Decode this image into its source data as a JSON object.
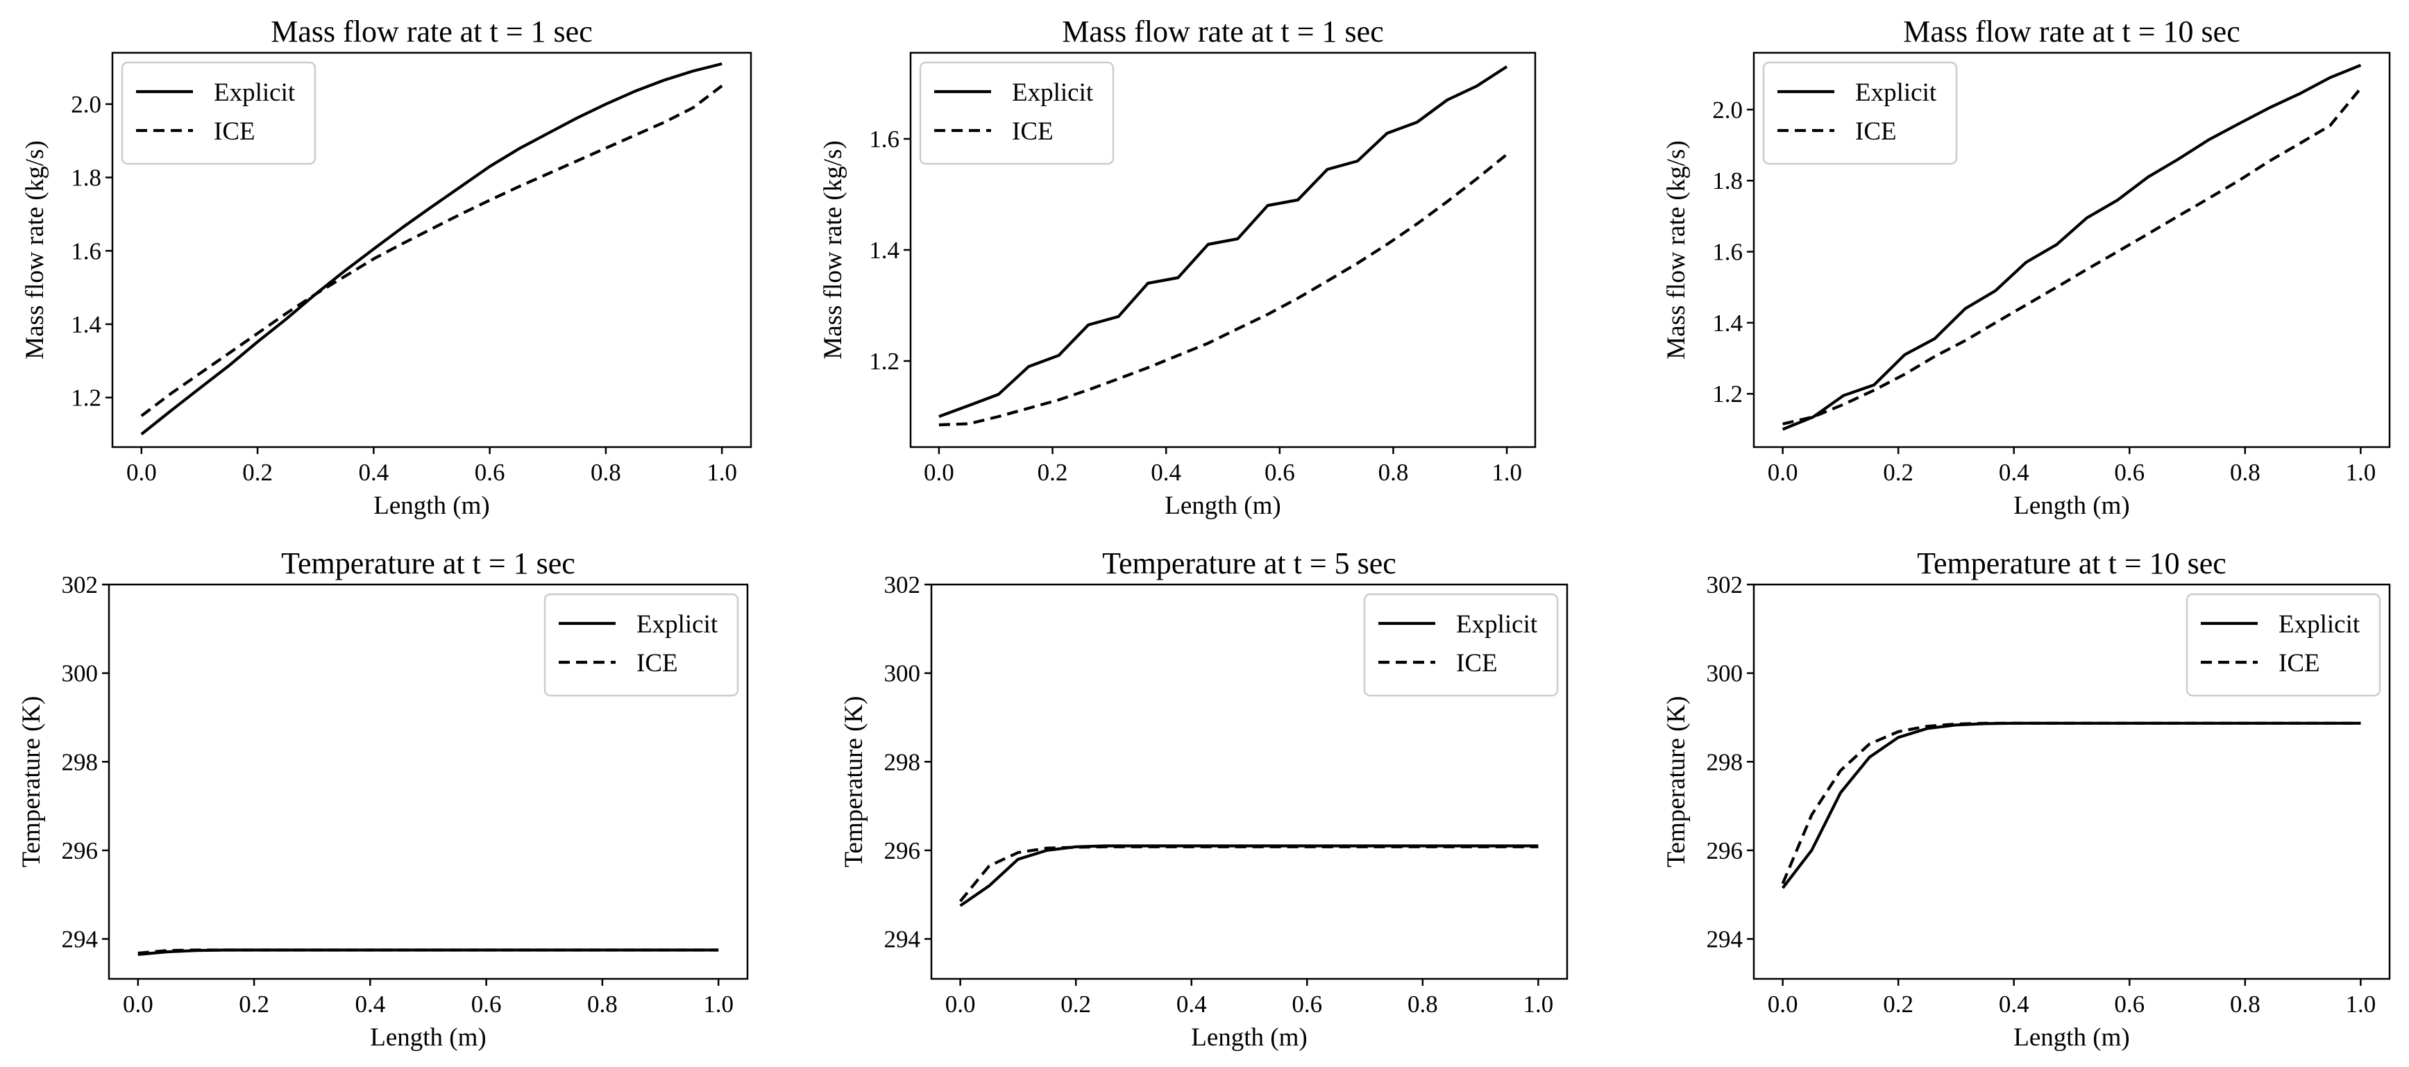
{
  "chart_data": [
    {
      "type": "line",
      "title": "Mass flow rate at t = 1 sec",
      "xlabel": "Length (m)",
      "ylabel": "Mass flow rate (kg/s)",
      "xlim": [
        -0.05,
        1.05
      ],
      "ylim": [
        1.065,
        2.14
      ],
      "xticks": [
        0.0,
        0.2,
        0.4,
        0.6,
        0.8,
        1.0
      ],
      "xtick_labels": [
        "0.0",
        "0.2",
        "0.4",
        "0.6",
        "0.8",
        "1.0"
      ],
      "yticks": [
        1.2,
        1.4,
        1.6,
        1.8,
        2.0
      ],
      "ytick_labels": [
        "1.2",
        "1.4",
        "1.6",
        "1.8",
        "2.0"
      ],
      "legend_position": "upper-left",
      "x": [
        0.0,
        0.05,
        0.1,
        0.15,
        0.2,
        0.25,
        0.3,
        0.35,
        0.4,
        0.45,
        0.5,
        0.55,
        0.6,
        0.65,
        0.7,
        0.75,
        0.8,
        0.85,
        0.9,
        0.95,
        1.0
      ],
      "series": [
        {
          "name": "Explicit",
          "dash": "solid",
          "values": [
            1.1,
            1.163,
            1.225,
            1.286,
            1.352,
            1.415,
            1.482,
            1.545,
            1.605,
            1.664,
            1.72,
            1.775,
            1.83,
            1.878,
            1.92,
            1.962,
            2.0,
            2.035,
            2.065,
            2.09,
            2.11
          ]
        },
        {
          "name": "ICE",
          "dash": "dashed",
          "values": [
            1.15,
            1.21,
            1.265,
            1.32,
            1.375,
            1.43,
            1.482,
            1.53,
            1.578,
            1.62,
            1.66,
            1.7,
            1.738,
            1.775,
            1.81,
            1.845,
            1.88,
            1.915,
            1.95,
            1.99,
            2.05
          ]
        }
      ]
    },
    {
      "type": "line",
      "title": "Mass flow rate at t = 1 sec",
      "xlabel": "Length (m)",
      "ylabel": "Mass flow rate (kg/s)",
      "xlim": [
        -0.05,
        1.05
      ],
      "ylim": [
        1.045,
        1.755
      ],
      "xticks": [
        0.0,
        0.2,
        0.4,
        0.6,
        0.8,
        1.0
      ],
      "xtick_labels": [
        "0.0",
        "0.2",
        "0.4",
        "0.6",
        "0.8",
        "1.0"
      ],
      "yticks": [
        1.2,
        1.4,
        1.6
      ],
      "ytick_labels": [
        "1.2",
        "1.4",
        "1.6"
      ],
      "legend_position": "upper-left",
      "x": [
        0.0,
        0.053,
        0.105,
        0.158,
        0.211,
        0.263,
        0.316,
        0.368,
        0.421,
        0.474,
        0.526,
        0.579,
        0.632,
        0.684,
        0.737,
        0.789,
        0.842,
        0.895,
        0.947,
        1.0
      ],
      "series": [
        {
          "name": "Explicit",
          "dash": "solid",
          "values": [
            1.1,
            1.12,
            1.14,
            1.19,
            1.21,
            1.265,
            1.28,
            1.34,
            1.35,
            1.41,
            1.42,
            1.48,
            1.49,
            1.545,
            1.56,
            1.61,
            1.63,
            1.67,
            1.695,
            1.73
          ]
        },
        {
          "name": "ICE",
          "dash": "dashed",
          "values": [
            1.085,
            1.087,
            1.1,
            1.115,
            1.13,
            1.148,
            1.168,
            1.188,
            1.21,
            1.232,
            1.258,
            1.284,
            1.313,
            1.344,
            1.376,
            1.41,
            1.447,
            1.487,
            1.528,
            1.572
          ]
        }
      ]
    },
    {
      "type": "line",
      "title": "Mass flow rate at t = 10 sec",
      "xlabel": "Length (m)",
      "ylabel": "Mass flow rate (kg/s)",
      "xlim": [
        -0.05,
        1.05
      ],
      "ylim": [
        1.05,
        2.16
      ],
      "xticks": [
        0.0,
        0.2,
        0.4,
        0.6,
        0.8,
        1.0
      ],
      "xtick_labels": [
        "0.0",
        "0.2",
        "0.4",
        "0.6",
        "0.8",
        "1.0"
      ],
      "yticks": [
        1.2,
        1.4,
        1.6,
        1.8,
        2.0
      ],
      "ytick_labels": [
        "1.2",
        "1.4",
        "1.6",
        "1.8",
        "2.0"
      ],
      "legend_position": "upper-left",
      "x": [
        0.0,
        0.053,
        0.105,
        0.158,
        0.211,
        0.263,
        0.316,
        0.368,
        0.421,
        0.474,
        0.526,
        0.579,
        0.632,
        0.684,
        0.737,
        0.789,
        0.842,
        0.895,
        0.947,
        1.0
      ],
      "series": [
        {
          "name": "Explicit",
          "dash": "solid",
          "values": [
            1.1,
            1.135,
            1.195,
            1.225,
            1.31,
            1.355,
            1.44,
            1.49,
            1.57,
            1.62,
            1.695,
            1.745,
            1.81,
            1.86,
            1.915,
            1.96,
            2.005,
            2.045,
            2.09,
            2.125
          ]
        },
        {
          "name": "ICE",
          "dash": "dashed",
          "values": [
            1.115,
            1.135,
            1.17,
            1.21,
            1.255,
            1.305,
            1.35,
            1.4,
            1.45,
            1.5,
            1.55,
            1.6,
            1.65,
            1.7,
            1.75,
            1.8,
            1.855,
            1.905,
            1.955,
            2.06
          ]
        }
      ]
    },
    {
      "type": "line",
      "title": "Temperature at t = 1 sec",
      "xlabel": "Length (m)",
      "ylabel": "Temperature (K)",
      "xlim": [
        -0.05,
        1.05
      ],
      "ylim": [
        293.1,
        302.0
      ],
      "xticks": [
        0.0,
        0.2,
        0.4,
        0.6,
        0.8,
        1.0
      ],
      "xtick_labels": [
        "0.0",
        "0.2",
        "0.4",
        "0.6",
        "0.8",
        "1.0"
      ],
      "yticks": [
        294,
        296,
        298,
        300,
        302
      ],
      "ytick_labels": [
        "294",
        "296",
        "298",
        "300",
        "302"
      ],
      "legend_position": "upper-right",
      "x": [
        0.0,
        0.05,
        0.1,
        0.15,
        0.2,
        0.3,
        0.4,
        0.5,
        0.6,
        0.7,
        0.8,
        0.9,
        1.0
      ],
      "series": [
        {
          "name": "Explicit",
          "dash": "solid",
          "values": [
            293.65,
            293.71,
            293.74,
            293.75,
            293.75,
            293.75,
            293.75,
            293.75,
            293.75,
            293.75,
            293.75,
            293.75,
            293.75
          ]
        },
        {
          "name": "ICE",
          "dash": "dashed",
          "values": [
            293.68,
            293.74,
            293.75,
            293.75,
            293.75,
            293.75,
            293.75,
            293.75,
            293.75,
            293.75,
            293.75,
            293.75,
            293.75
          ]
        }
      ]
    },
    {
      "type": "line",
      "title": "Temperature at t = 5 sec",
      "xlabel": "Length (m)",
      "ylabel": "Temperature (K)",
      "xlim": [
        -0.05,
        1.05
      ],
      "ylim": [
        293.1,
        302.0
      ],
      "xticks": [
        0.0,
        0.2,
        0.4,
        0.6,
        0.8,
        1.0
      ],
      "xtick_labels": [
        "0.0",
        "0.2",
        "0.4",
        "0.6",
        "0.8",
        "1.0"
      ],
      "yticks": [
        294,
        296,
        298,
        300,
        302
      ],
      "ytick_labels": [
        "294",
        "296",
        "298",
        "300",
        "302"
      ],
      "legend_position": "upper-right",
      "x": [
        0.0,
        0.05,
        0.1,
        0.15,
        0.2,
        0.25,
        0.3,
        0.4,
        0.5,
        0.6,
        0.7,
        0.8,
        0.9,
        1.0
      ],
      "series": [
        {
          "name": "Explicit",
          "dash": "solid",
          "values": [
            294.75,
            295.2,
            295.8,
            296.0,
            296.08,
            296.1,
            296.1,
            296.1,
            296.1,
            296.1,
            296.1,
            296.1,
            296.1,
            296.1
          ]
        },
        {
          "name": "ICE",
          "dash": "dashed",
          "values": [
            294.85,
            295.65,
            295.95,
            296.05,
            296.07,
            296.08,
            296.08,
            296.08,
            296.08,
            296.08,
            296.08,
            296.08,
            296.08,
            296.08
          ]
        }
      ]
    },
    {
      "type": "line",
      "title": "Temperature at t = 10 sec",
      "xlabel": "Length (m)",
      "ylabel": "Temperature (K)",
      "xlim": [
        -0.05,
        1.05
      ],
      "ylim": [
        293.1,
        302.0
      ],
      "xticks": [
        0.0,
        0.2,
        0.4,
        0.6,
        0.8,
        1.0
      ],
      "xtick_labels": [
        "0.0",
        "0.2",
        "0.4",
        "0.6",
        "0.8",
        "1.0"
      ],
      "yticks": [
        294,
        296,
        298,
        300,
        302
      ],
      "ytick_labels": [
        "294",
        "296",
        "298",
        "300",
        "302"
      ],
      "legend_position": "upper-right",
      "x": [
        0.0,
        0.05,
        0.1,
        0.15,
        0.2,
        0.25,
        0.3,
        0.35,
        0.4,
        0.5,
        0.6,
        0.7,
        0.8,
        0.9,
        1.0
      ],
      "series": [
        {
          "name": "Explicit",
          "dash": "solid",
          "values": [
            295.15,
            296.0,
            297.3,
            298.1,
            298.55,
            298.75,
            298.83,
            298.86,
            298.87,
            298.87,
            298.87,
            298.87,
            298.87,
            298.87,
            298.87
          ]
        },
        {
          "name": "ICE",
          "dash": "dashed",
          "values": [
            295.25,
            296.8,
            297.8,
            298.4,
            298.68,
            298.8,
            298.85,
            298.87,
            298.87,
            298.87,
            298.87,
            298.87,
            298.87,
            298.87,
            298.87
          ]
        }
      ]
    }
  ]
}
